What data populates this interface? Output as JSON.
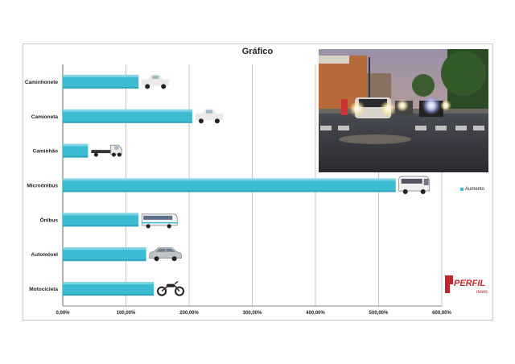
{
  "chart_data": {
    "type": "bar",
    "orientation": "horizontal",
    "title": "Gráfico",
    "categories": [
      "Caminhonete",
      "Camioneta",
      "Caminhão",
      "Microônibus",
      "Ônibus",
      "Automóvel",
      "Motocicleta"
    ],
    "series": [
      {
        "name": "Aumento",
        "values": [
          120,
          205,
          40,
          527,
          120,
          132,
          144
        ]
      }
    ],
    "xlim": [
      0,
      600
    ],
    "xticks": [
      "0,00%",
      "100,00%",
      "200,00%",
      "300,00%",
      "400,00%",
      "500,00%",
      "600,00%"
    ],
    "grid": true,
    "legend": "right",
    "bar_color": "#3bbcd3",
    "icons": [
      "pickup-truck-icon",
      "pickup-truck-icon",
      "truck-icon",
      "minibus-icon",
      "bus-icon",
      "car-icon",
      "motorcycle-icon"
    ]
  },
  "logo": {
    "text": "PERFIL",
    "subtext": "news"
  }
}
